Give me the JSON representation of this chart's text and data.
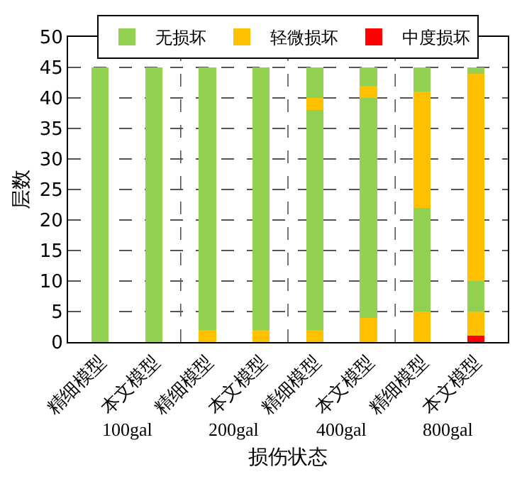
{
  "chart_data": {
    "type": "bar",
    "stacked": true,
    "ylabel": "层数",
    "xlabel": "损伤状态",
    "categories": [
      "精细模型",
      "本文模型",
      "精细模型",
      "本文模型",
      "精细模型",
      "本文模型",
      "精细模型",
      "本文模型"
    ],
    "series": [
      {
        "name": "中度损坏",
        "color": "#ff0000",
        "values": [
          0,
          0,
          0,
          0,
          0,
          0,
          0,
          1
        ]
      },
      {
        "name": "轻微损坏",
        "color": "#ffc000",
        "values": [
          0,
          0,
          2,
          2,
          2,
          4,
          5,
          4
        ]
      },
      {
        "name": "无损坏",
        "color": "#92d050",
        "values": [
          45,
          45,
          43,
          43,
          36,
          36,
          17,
          5
        ]
      },
      {
        "color": "#ffc000",
        "values": [
          0,
          0,
          0,
          0,
          2,
          2,
          19,
          34
        ]
      },
      {
        "color": "#92d050",
        "values": [
          0,
          0,
          0,
          0,
          5,
          3,
          4,
          1
        ]
      }
    ],
    "annotations": [
      "100gal",
      "200gal",
      "400gal",
      "800gal"
    ],
    "ylim": [
      0,
      50
    ],
    "yticks": [
      0,
      5,
      10,
      15,
      20,
      25,
      30,
      35,
      40,
      45,
      50
    ],
    "grid": "y",
    "legend": "top"
  }
}
